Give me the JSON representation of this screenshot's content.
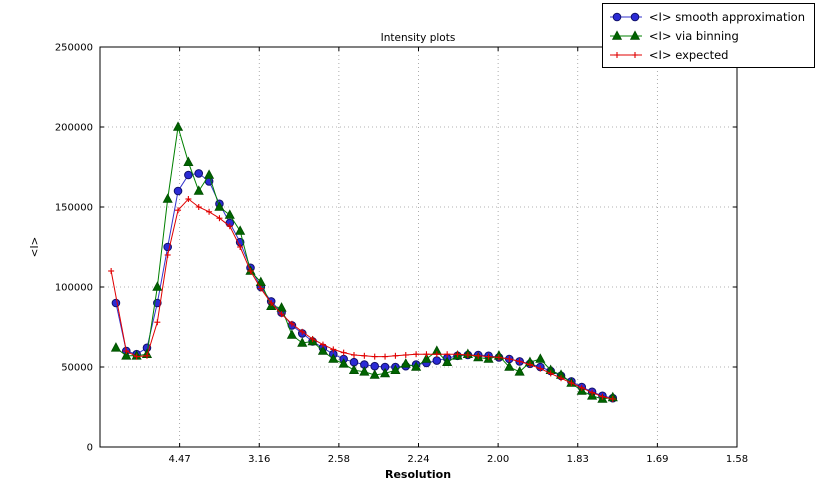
{
  "chart_data": {
    "type": "line",
    "title": "Intensity plots",
    "xlabel": "Resolution",
    "ylabel": "<I>",
    "xlim": [
      0,
      0.4
    ],
    "ylim": [
      0,
      250000
    ],
    "grid": true,
    "legend_position": "top-right",
    "xticks": [
      {
        "pos": 0.05,
        "label": "4.47"
      },
      {
        "pos": 0.1,
        "label": "3.16"
      },
      {
        "pos": 0.15,
        "label": "2.58"
      },
      {
        "pos": 0.2,
        "label": "2.24"
      },
      {
        "pos": 0.25,
        "label": "2.00"
      },
      {
        "pos": 0.3,
        "label": "1.83"
      },
      {
        "pos": 0.35,
        "label": "1.69"
      },
      {
        "pos": 0.4,
        "label": "1.58"
      }
    ],
    "yticks": [
      {
        "pos": 0,
        "label": "0"
      },
      {
        "pos": 50000,
        "label": "50000"
      },
      {
        "pos": 100000,
        "label": "100000"
      },
      {
        "pos": 150000,
        "label": "150000"
      },
      {
        "pos": 200000,
        "label": "200000"
      },
      {
        "pos": 250000,
        "label": "250000"
      }
    ],
    "series": [
      {
        "name": "<I> smooth approximation",
        "marker": "circle",
        "color": "#3333cc",
        "marker_fill": "#2b2bd5",
        "marker_edge": "#10106a",
        "x": [
          0.01,
          0.0165,
          0.023,
          0.0295,
          0.036,
          0.0425,
          0.049,
          0.0555,
          0.062,
          0.0685,
          0.075,
          0.0815,
          0.088,
          0.0945,
          0.101,
          0.1075,
          0.114,
          0.1205,
          0.127,
          0.1335,
          0.14,
          0.1465,
          0.153,
          0.1595,
          0.166,
          0.1725,
          0.179,
          0.1855,
          0.192,
          0.1985,
          0.205,
          0.2115,
          0.218,
          0.2245,
          0.231,
          0.2375,
          0.244,
          0.2505,
          0.257,
          0.2635,
          0.27,
          0.2765,
          0.283,
          0.2895,
          0.296,
          0.3025,
          0.309,
          0.3155,
          0.322
        ],
        "y": [
          90000,
          60000,
          58000,
          62000,
          90000,
          125000,
          160000,
          170000,
          171000,
          166000,
          152000,
          140000,
          128000,
          112000,
          100000,
          91000,
          84000,
          76000,
          71000,
          66000,
          62000,
          58000,
          55000,
          53000,
          51500,
          50500,
          50000,
          50000,
          50500,
          51500,
          52500,
          54000,
          55500,
          57000,
          57500,
          57500,
          57000,
          56000,
          55000,
          53500,
          52000,
          50000,
          47500,
          44500,
          41000,
          37500,
          34500,
          32000,
          30500
        ]
      },
      {
        "name": "<I> via binning",
        "marker": "triangle",
        "color": "#008000",
        "marker_fill": "#006400",
        "marker_edge": "#004d00",
        "x": [
          0.01,
          0.0165,
          0.023,
          0.0295,
          0.036,
          0.0425,
          0.049,
          0.0555,
          0.062,
          0.0685,
          0.075,
          0.0815,
          0.088,
          0.0945,
          0.101,
          0.1075,
          0.114,
          0.1205,
          0.127,
          0.1335,
          0.14,
          0.1465,
          0.153,
          0.1595,
          0.166,
          0.1725,
          0.179,
          0.1855,
          0.192,
          0.1985,
          0.205,
          0.2115,
          0.218,
          0.2245,
          0.231,
          0.2375,
          0.244,
          0.2505,
          0.257,
          0.2635,
          0.27,
          0.2765,
          0.283,
          0.2895,
          0.296,
          0.3025,
          0.309,
          0.3155,
          0.322
        ],
        "y": [
          62000,
          57000,
          57000,
          58000,
          100000,
          155000,
          200000,
          178000,
          160000,
          170000,
          150000,
          145000,
          135000,
          110000,
          103000,
          88000,
          87000,
          70000,
          65000,
          66000,
          60000,
          55000,
          52000,
          48000,
          47000,
          45000,
          46000,
          48000,
          52000,
          50000,
          55000,
          60000,
          53000,
          57000,
          58000,
          56000,
          55000,
          57000,
          50000,
          47000,
          53000,
          55000,
          48000,
          45000,
          40000,
          35000,
          32000,
          30000,
          31000
        ]
      },
      {
        "name": "<I> expected",
        "marker": "plus",
        "color": "#e00000",
        "marker_fill": "#e00000",
        "marker_edge": "#e00000",
        "x": [
          0.007,
          0.0165,
          0.023,
          0.0295,
          0.036,
          0.0425,
          0.049,
          0.0555,
          0.062,
          0.0685,
          0.075,
          0.0815,
          0.088,
          0.0945,
          0.101,
          0.1075,
          0.114,
          0.1205,
          0.127,
          0.1335,
          0.14,
          0.1465,
          0.153,
          0.1595,
          0.166,
          0.1725,
          0.179,
          0.1855,
          0.192,
          0.1985,
          0.205,
          0.2115,
          0.218,
          0.2245,
          0.231,
          0.2375,
          0.244,
          0.2505,
          0.257,
          0.2635,
          0.27,
          0.2765,
          0.283,
          0.2895,
          0.296,
          0.3025,
          0.309,
          0.3155,
          0.322
        ],
        "y": [
          110000,
          60000,
          56500,
          57000,
          78000,
          120000,
          148000,
          155000,
          150000,
          147000,
          143000,
          138000,
          125000,
          110000,
          99000,
          90000,
          83000,
          77000,
          72000,
          67500,
          64000,
          61000,
          59000,
          57500,
          57000,
          56500,
          56500,
          57000,
          57500,
          58000,
          58000,
          58000,
          58000,
          58000,
          57500,
          57000,
          56500,
          56000,
          55000,
          53500,
          51500,
          49000,
          46000,
          43000,
          40000,
          37000,
          34000,
          31500,
          30000
        ]
      }
    ]
  }
}
